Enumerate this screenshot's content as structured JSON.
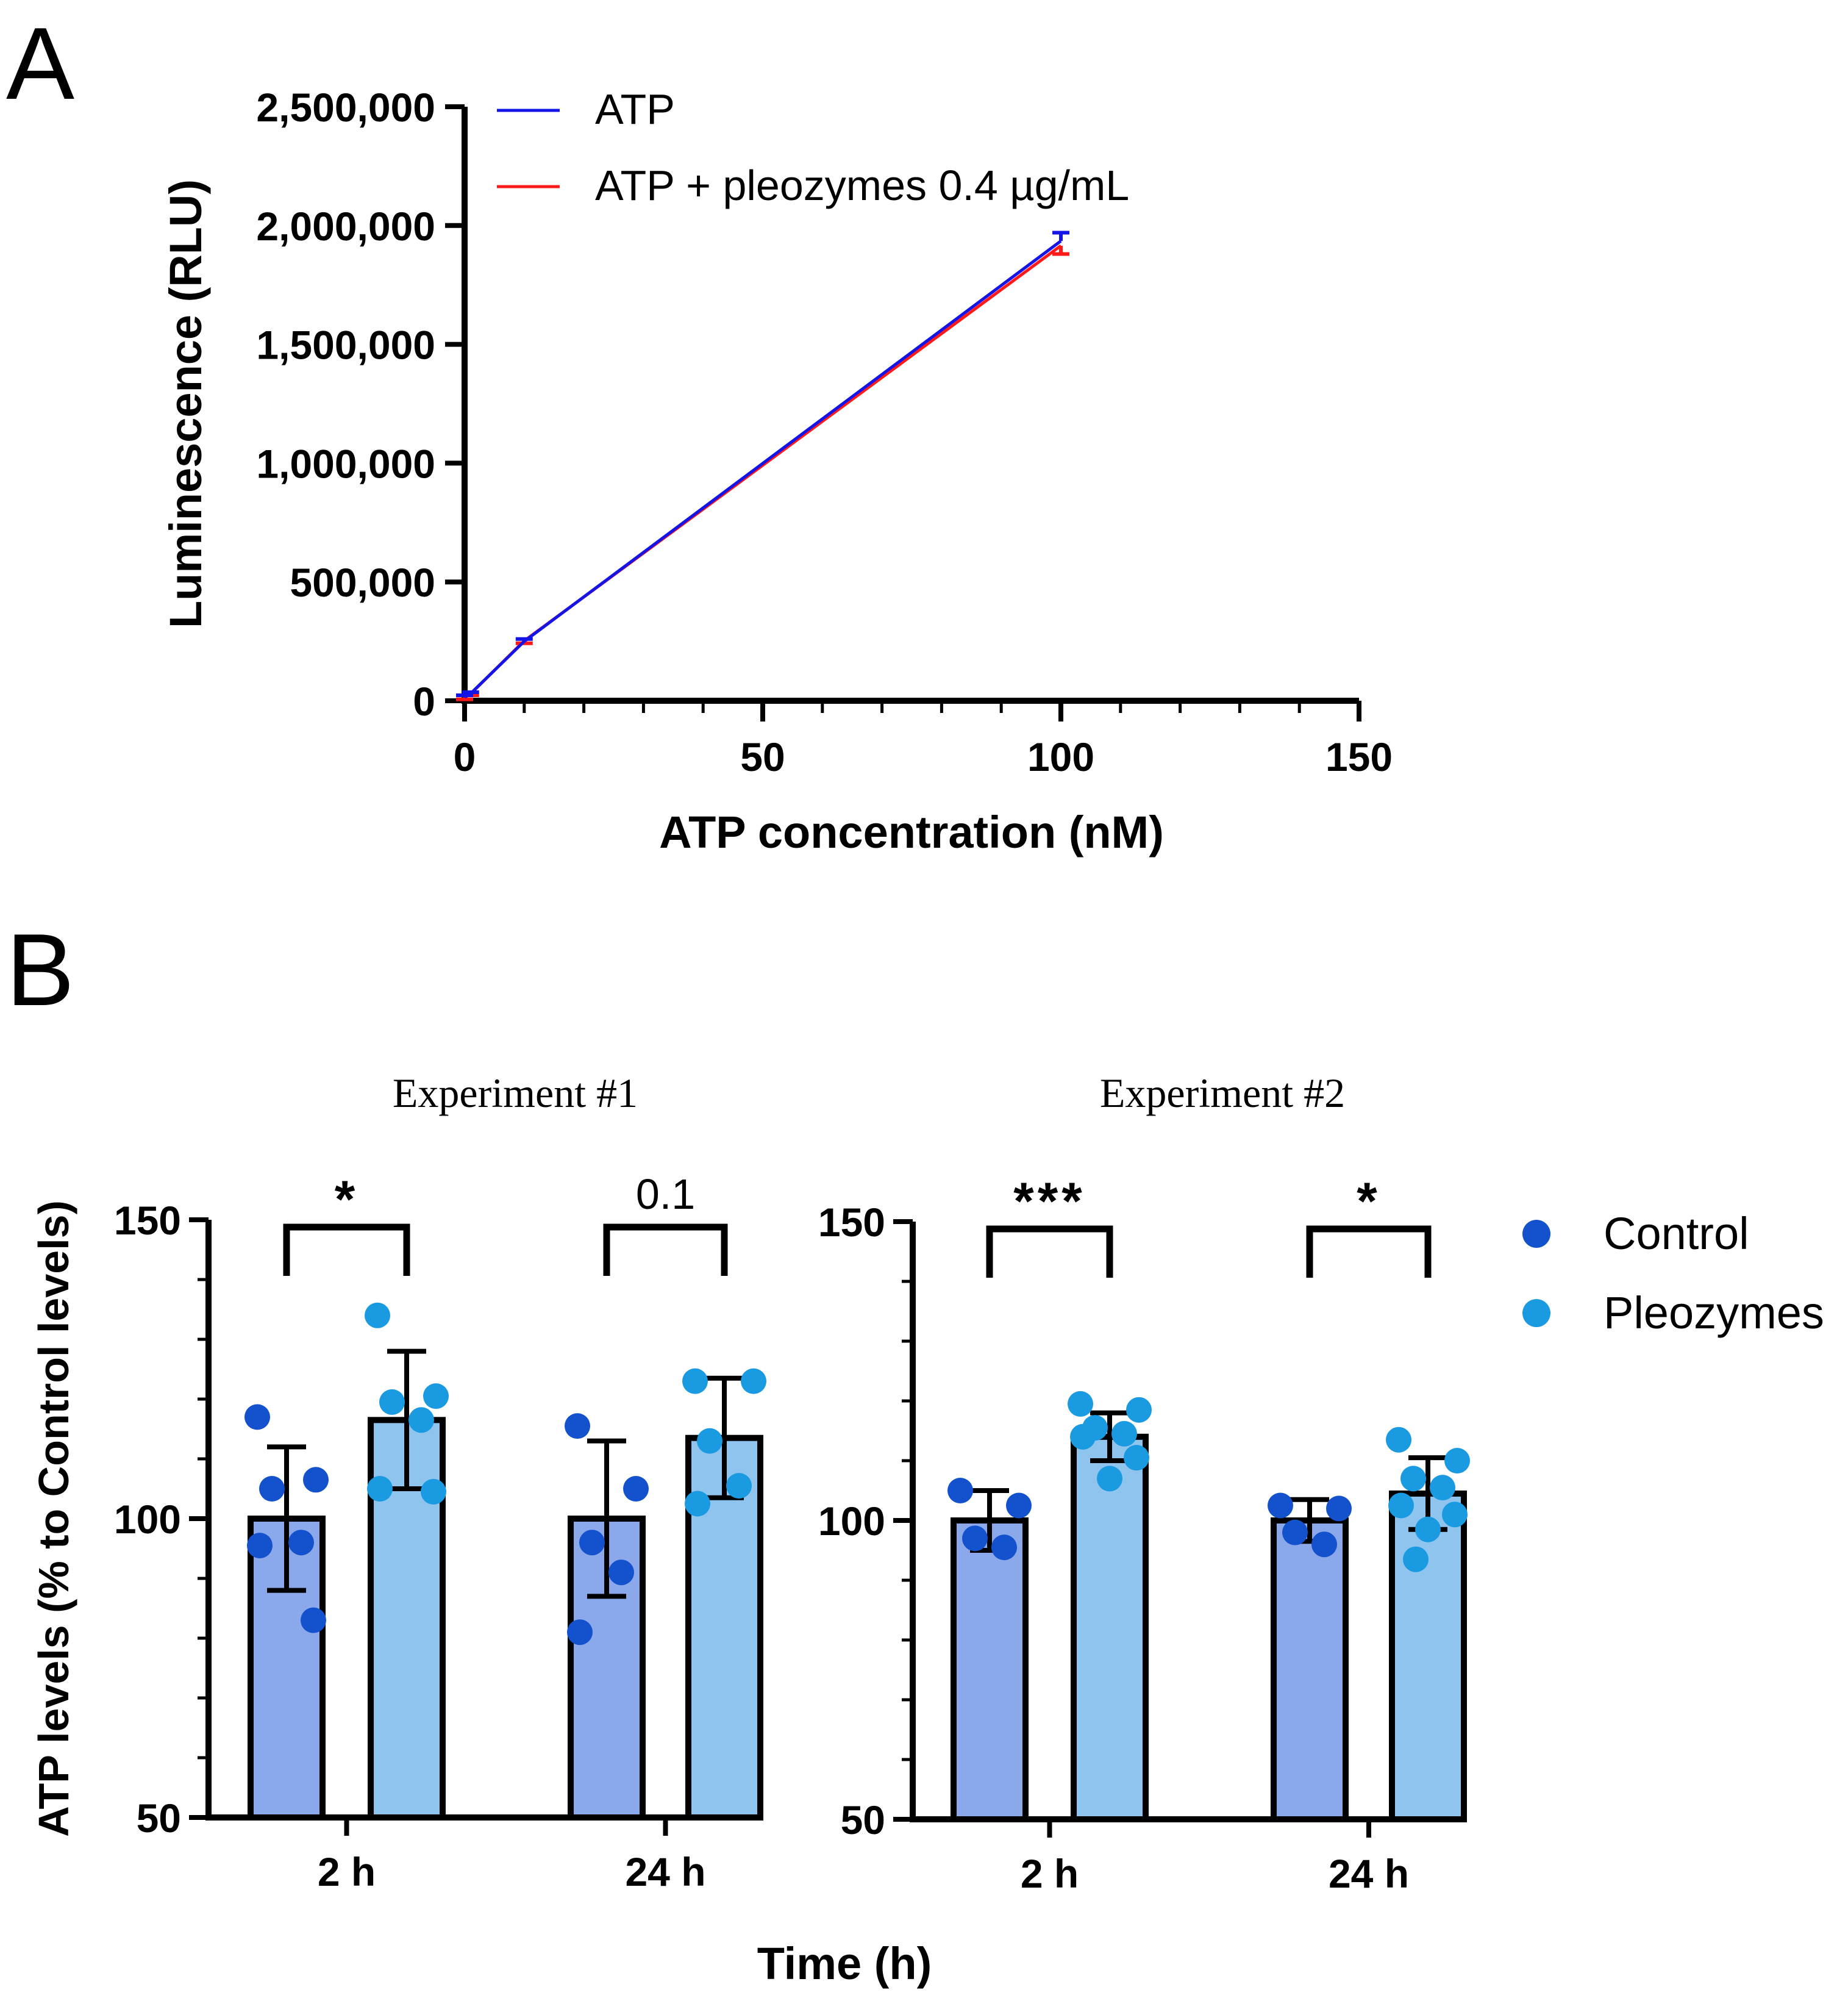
{
  "panel_labels": {
    "a": "A",
    "b": "B"
  },
  "b_titles": {
    "exp1": "Experiment #1",
    "exp2": "Experiment #2"
  },
  "b_shared": {
    "ylabel": "ATP levels (% to Control levels)",
    "xlabel": "Time (h)"
  },
  "colors": {
    "atp_line": "#1414e6",
    "atp_pleo_line": "#ff1a1a",
    "control_bar": "#8aa8ea",
    "pleo_bar": "#8ec4ee",
    "control_dot": "#1352cc",
    "pleo_dot": "#1a9ae0"
  },
  "chart_data": [
    {
      "id": "A",
      "type": "line",
      "xlabel": "ATP concentration (nM)",
      "ylabel": "Luminescence (RLU)",
      "xlim": [
        0,
        150
      ],
      "ylim": [
        0,
        2500000
      ],
      "xticks": [
        0,
        50,
        100,
        150
      ],
      "xtick_labels": [
        "0",
        "50",
        "100",
        "150"
      ],
      "yticks": [
        0,
        500000,
        1000000,
        1500000,
        2000000,
        2500000
      ],
      "ytick_labels": [
        "0",
        "500,000",
        "1,000,000",
        "1,500,000",
        "2,000,000",
        "2,500,000"
      ],
      "legend": "top-left",
      "series": [
        {
          "name": "ATP",
          "x": [
            0,
            1,
            10,
            100
          ],
          "y": [
            15000,
            30000,
            250000,
            1935000
          ],
          "err": [
            8000,
            6000,
            10000,
            35000
          ]
        },
        {
          "name": "ATP + pleozymes 0.4 µg/mL",
          "x": [
            0,
            1,
            10,
            100
          ],
          "y": [
            14000,
            29000,
            252000,
            1915000
          ],
          "err": [
            8000,
            6000,
            10000,
            35000
          ]
        }
      ]
    },
    {
      "id": "B1",
      "type": "bar",
      "title": "Experiment #1",
      "categories": [
        "2 h",
        "24 h"
      ],
      "ylim": [
        50,
        150
      ],
      "yticks": [
        50,
        100,
        150
      ],
      "ytick_labels": [
        "50",
        "100",
        "150"
      ],
      "series": [
        {
          "name": "Control",
          "values": [
            100,
            100
          ],
          "sd": [
            12,
            13
          ],
          "points": [
            [
              117,
              106.5,
              105,
              96,
              95.5,
              83
            ],
            [
              115.5,
              105,
              96,
              91,
              81
            ]
          ]
        },
        {
          "name": "Pleozymes",
          "values": [
            116.5,
            113.5
          ],
          "sd": [
            11.5,
            10
          ],
          "points": [
            [
              134,
              120.5,
              119.5,
              116.5,
              105,
              104.5
            ],
            [
              123,
              123,
              113,
              105.5,
              102.5
            ]
          ]
        }
      ],
      "significance": [
        "*",
        "0.1"
      ]
    },
    {
      "id": "B2",
      "type": "bar",
      "title": "Experiment #2",
      "categories": [
        "2 h",
        "24 h"
      ],
      "ylim": [
        50,
        150
      ],
      "yticks": [
        50,
        100,
        150
      ],
      "ytick_labels": [
        "50",
        "100",
        "150"
      ],
      "legend": "right",
      "series": [
        {
          "name": "Control",
          "values": [
            100,
            100
          ],
          "sd": [
            5,
            3.5
          ],
          "points": [
            [
              105,
              102.5,
              97,
              95.5
            ],
            [
              102.5,
              102,
              98,
              96
            ]
          ]
        },
        {
          "name": "Pleozymes",
          "values": [
            114,
            104.5
          ],
          "sd": [
            4,
            6
          ],
          "points": [
            [
              119.5,
              118.5,
              115.5,
              114.5,
              114,
              110.5,
              107
            ],
            [
              113.5,
              110,
              107,
              105.5,
              102.5,
              101,
              98.5,
              93.5
            ]
          ]
        }
      ],
      "significance": [
        "***",
        "*"
      ]
    }
  ]
}
